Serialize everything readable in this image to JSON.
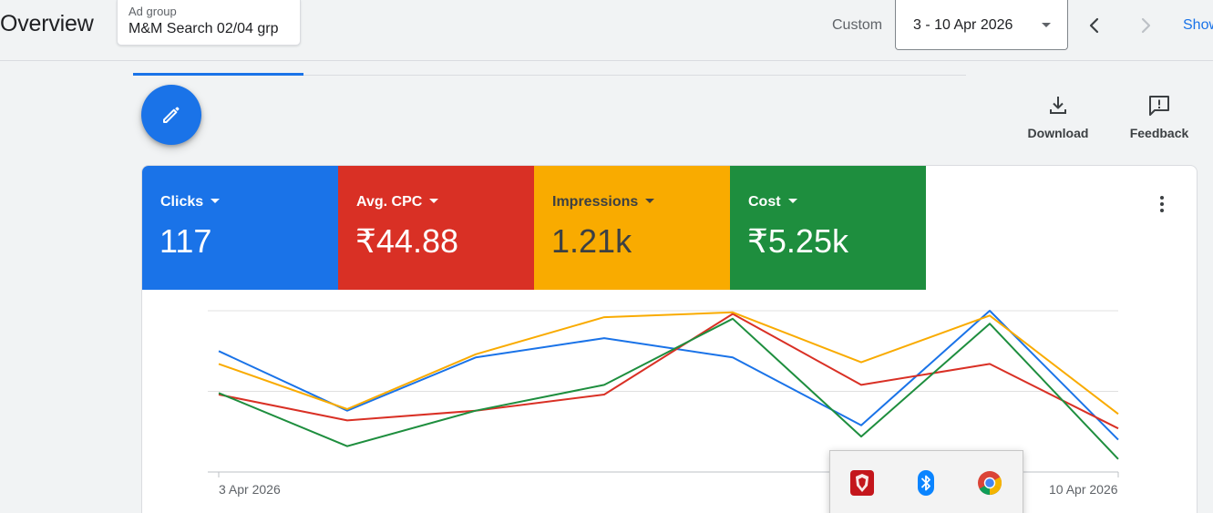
{
  "header": {
    "title": "Overview",
    "ad_group_label": "Ad group",
    "ad_group_value": "M&M Search 02/04 grp",
    "range_type": "Custom",
    "date_range": "3 - 10 Apr 2026",
    "prev_icon": "chevron-left-icon",
    "next_icon": "chevron-right-icon",
    "show_label": "Show"
  },
  "toolbar": {
    "edit_icon": "pencil-icon",
    "download_label": "Download",
    "feedback_label": "Feedback"
  },
  "metrics": [
    {
      "label": "Clicks",
      "value": "117",
      "color": "#1a73e8",
      "text_color": "#ffffff"
    },
    {
      "label": "Avg. CPC",
      "value": "₹44.88",
      "color": "#d93025",
      "text_color": "#ffffff"
    },
    {
      "label": "Impressions",
      "value": "1.21k",
      "color": "#f9ab00",
      "text_color": "#3c4043"
    },
    {
      "label": "Cost",
      "value": "₹5.25k",
      "color": "#1e8e3e",
      "text_color": "#ffffff"
    }
  ],
  "chart_data": {
    "type": "line",
    "x_tick_labels": [
      "3 Apr 2026",
      "10 Apr 2026"
    ],
    "x": [
      "3 Apr 2026",
      "4 Apr 2026",
      "5 Apr 2026",
      "6 Apr 2026",
      "7 Apr 2026",
      "8 Apr 2026",
      "9 Apr 2026",
      "10 Apr 2026"
    ],
    "ylim": [
      0,
      1
    ],
    "grid": true,
    "series": [
      {
        "metric": "Clicks",
        "color": "#1a73e8",
        "values": [
          0.75,
          0.38,
          0.71,
          0.83,
          0.71,
          0.29,
          1.0,
          0.2
        ]
      },
      {
        "metric": "Avg. CPC",
        "color": "#d93025",
        "values": [
          0.48,
          0.32,
          0.38,
          0.48,
          0.98,
          0.54,
          0.67,
          0.27
        ]
      },
      {
        "metric": "Impressions",
        "color": "#f9ab00",
        "values": [
          0.67,
          0.39,
          0.73,
          0.96,
          0.99,
          0.68,
          0.97,
          0.36
        ]
      },
      {
        "metric": "Cost",
        "color": "#1e8e3e",
        "values": [
          0.49,
          0.16,
          0.38,
          0.54,
          0.95,
          0.22,
          0.92,
          0.08
        ]
      }
    ]
  },
  "tray": {
    "icons": [
      "brave-browser-icon",
      "bluetooth-icon",
      "chrome-browser-icon"
    ]
  }
}
